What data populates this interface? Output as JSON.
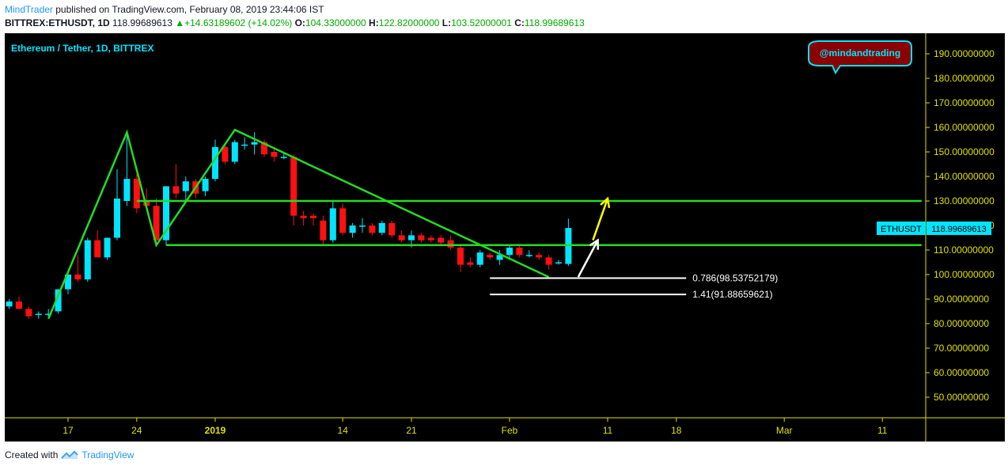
{
  "header": {
    "author": "MindTrader",
    "published_text": " published on TradingView.com, February 08, 2019 23:44:06 IST",
    "symbol": "BITTREX:ETHUSDT, 1D",
    "last": "118.99689613",
    "change": "+14.63189602 (+14.02%)",
    "open_label": "O:",
    "open": "104.33000000",
    "high_label": "H:",
    "high": "122.82000000",
    "low_label": "L:",
    "low": "103.52000001",
    "close_label": "C:",
    "close": "118.99689613"
  },
  "chart": {
    "title": "Ethereum / Tether, 1D, BITTREX",
    "watermark": "@mindandtrading",
    "price_tag_symbol": "ETHUSDT",
    "price_tag_value": "118.99689613",
    "fib_labels": [
      "0.786(98.53752179)",
      "1.41(91.88659621)"
    ]
  },
  "footer": {
    "created_with": "Created with",
    "brand": "TradingView"
  },
  "colors": {
    "background": "#000000",
    "up_candle": "#00e5ff",
    "down_candle": "#ff1010",
    "trend_line": "#22dd22",
    "axis": "#e0e000",
    "arrow_white": "#ffffff",
    "arrow_yellow": "#ffff00"
  },
  "chart_data": {
    "type": "candlestick",
    "y_axis": {
      "range": [
        45,
        197
      ],
      "ticks": [
        "190.00000000",
        "180.00000000",
        "170.00000000",
        "160.00000000",
        "150.00000000",
        "140.00000000",
        "130.00000000",
        "120.00000000",
        "110.00000000",
        "100.00000000",
        "90.00000000",
        "80.00000000",
        "70.00000000",
        "60.00000000",
        "50.00000000"
      ]
    },
    "x_axis": {
      "ticks": [
        {
          "label": "17",
          "day": 17
        },
        {
          "label": "24",
          "day": 24
        },
        {
          "label": "2019",
          "day": 32
        },
        {
          "label": "14",
          "day": 45
        },
        {
          "label": "21",
          "day": 52
        },
        {
          "label": "Feb",
          "day": 62
        },
        {
          "label": "11",
          "day": 72
        },
        {
          "label": "18",
          "day": 79
        },
        {
          "label": "Mar",
          "day": 90
        },
        {
          "label": "11",
          "day": 100
        }
      ]
    },
    "candles": [
      {
        "day": 10,
        "o": 89,
        "h": 91,
        "l": 86,
        "c": 87
      },
      {
        "day": 11,
        "o": 87,
        "h": 90,
        "l": 86,
        "c": 89
      },
      {
        "day": 12,
        "o": 89,
        "h": 91,
        "l": 86,
        "c": 86
      },
      {
        "day": 13,
        "o": 86,
        "h": 87,
        "l": 82,
        "c": 83
      },
      {
        "day": 14,
        "o": 84,
        "h": 85,
        "l": 82,
        "c": 84
      },
      {
        "day": 15,
        "o": 84,
        "h": 86,
        "l": 83,
        "c": 84
      },
      {
        "day": 16,
        "o": 85,
        "h": 94,
        "l": 84,
        "c": 94
      },
      {
        "day": 17,
        "o": 94,
        "h": 101,
        "l": 92,
        "c": 100
      },
      {
        "day": 18,
        "o": 100,
        "h": 108,
        "l": 97,
        "c": 98
      },
      {
        "day": 19,
        "o": 98,
        "h": 115,
        "l": 97,
        "c": 114
      },
      {
        "day": 20,
        "o": 114,
        "h": 118,
        "l": 107,
        "c": 107
      },
      {
        "day": 21,
        "o": 107,
        "h": 115,
        "l": 106,
        "c": 115
      },
      {
        "day": 22,
        "o": 115,
        "h": 143,
        "l": 114,
        "c": 131
      },
      {
        "day": 23,
        "o": 130,
        "h": 158,
        "l": 128,
        "c": 139
      },
      {
        "day": 24,
        "o": 139,
        "h": 141,
        "l": 125,
        "c": 127
      },
      {
        "day": 25,
        "o": 130,
        "h": 135,
        "l": 126,
        "c": 128
      },
      {
        "day": 26,
        "o": 128,
        "h": 131,
        "l": 112,
        "c": 114
      },
      {
        "day": 27,
        "o": 114,
        "h": 136,
        "l": 112,
        "c": 136
      },
      {
        "day": 28,
        "o": 136,
        "h": 145,
        "l": 131,
        "c": 133
      },
      {
        "day": 29,
        "o": 134,
        "h": 140,
        "l": 130,
        "c": 138
      },
      {
        "day": 30,
        "o": 138,
        "h": 139,
        "l": 131,
        "c": 133
      },
      {
        "day": 31,
        "o": 134,
        "h": 140,
        "l": 132,
        "c": 139
      },
      {
        "day": 32,
        "o": 139,
        "h": 155,
        "l": 138,
        "c": 152
      },
      {
        "day": 33,
        "o": 152,
        "h": 153,
        "l": 145,
        "c": 146
      },
      {
        "day": 34,
        "o": 146,
        "h": 155,
        "l": 145,
        "c": 154
      },
      {
        "day": 35,
        "o": 153,
        "h": 156,
        "l": 151,
        "c": 153
      },
      {
        "day": 36,
        "o": 153,
        "h": 158,
        "l": 149,
        "c": 154
      },
      {
        "day": 37,
        "o": 154,
        "h": 155,
        "l": 148,
        "c": 149
      },
      {
        "day": 38,
        "o": 150,
        "h": 152,
        "l": 146,
        "c": 148
      },
      {
        "day": 39,
        "o": 148,
        "h": 150,
        "l": 147,
        "c": 148
      },
      {
        "day": 40,
        "o": 148,
        "h": 149,
        "l": 120,
        "c": 124
      },
      {
        "day": 41,
        "o": 124,
        "h": 126,
        "l": 120,
        "c": 123
      },
      {
        "day": 42,
        "o": 124,
        "h": 125,
        "l": 120,
        "c": 123
      },
      {
        "day": 43,
        "o": 122,
        "h": 124,
        "l": 112,
        "c": 114
      },
      {
        "day": 44,
        "o": 114,
        "h": 130,
        "l": 113,
        "c": 127
      },
      {
        "day": 45,
        "o": 127,
        "h": 129,
        "l": 116,
        "c": 117
      },
      {
        "day": 46,
        "o": 117,
        "h": 121,
        "l": 115,
        "c": 120
      },
      {
        "day": 47,
        "o": 120,
        "h": 123,
        "l": 117,
        "c": 120
      },
      {
        "day": 48,
        "o": 120,
        "h": 121,
        "l": 116,
        "c": 117
      },
      {
        "day": 49,
        "o": 117,
        "h": 122,
        "l": 116,
        "c": 121
      },
      {
        "day": 50,
        "o": 121,
        "h": 122,
        "l": 115,
        "c": 116
      },
      {
        "day": 51,
        "o": 116,
        "h": 118,
        "l": 113,
        "c": 114
      },
      {
        "day": 52,
        "o": 114,
        "h": 118,
        "l": 111,
        "c": 116
      },
      {
        "day": 53,
        "o": 116,
        "h": 117,
        "l": 113,
        "c": 114
      },
      {
        "day": 54,
        "o": 115,
        "h": 116,
        "l": 113,
        "c": 114
      },
      {
        "day": 55,
        "o": 115,
        "h": 116,
        "l": 112,
        "c": 113
      },
      {
        "day": 56,
        "o": 114,
        "h": 116,
        "l": 110,
        "c": 111
      },
      {
        "day": 57,
        "o": 111,
        "h": 112,
        "l": 101,
        "c": 104
      },
      {
        "day": 58,
        "o": 105,
        "h": 107,
        "l": 103,
        "c": 104
      },
      {
        "day": 59,
        "o": 104,
        "h": 110,
        "l": 103,
        "c": 109
      },
      {
        "day": 60,
        "o": 108,
        "h": 109,
        "l": 106,
        "c": 107
      },
      {
        "day": 61,
        "o": 106,
        "h": 110,
        "l": 104,
        "c": 108
      },
      {
        "day": 62,
        "o": 108,
        "h": 112,
        "l": 106,
        "c": 111
      },
      {
        "day": 63,
        "o": 111,
        "h": 112,
        "l": 107,
        "c": 108
      },
      {
        "day": 64,
        "o": 108,
        "h": 110,
        "l": 107,
        "c": 108
      },
      {
        "day": 65,
        "o": 108,
        "h": 109,
        "l": 106,
        "c": 107
      },
      {
        "day": 66,
        "o": 107,
        "h": 108,
        "l": 102,
        "c": 104
      },
      {
        "day": 67,
        "o": 105,
        "h": 106,
        "l": 104,
        "c": 105
      },
      {
        "day": 68,
        "o": 104.33,
        "h": 122.82,
        "l": 103.52,
        "c": 118.99689613
      }
    ],
    "lines": [
      {
        "points": [
          [
            15,
            82
          ],
          [
            23,
            158
          ],
          [
            26,
            112
          ],
          [
            34,
            159
          ],
          [
            66,
            99
          ]
        ]
      },
      {
        "points": [
          [
            24,
            130
          ],
          [
            104,
            130
          ]
        ]
      },
      {
        "points": [
          [
            27,
            112
          ],
          [
            104,
            112
          ]
        ]
      }
    ],
    "fib_levels": [
      {
        "label": "0.786(98.53752179)",
        "value": 98.53752179,
        "from_day": 60,
        "to_day": 80
      },
      {
        "label": "1.41(91.88659621)",
        "value": 91.88659621,
        "from_day": 60,
        "to_day": 80
      }
    ],
    "arrows": [
      {
        "color": "white",
        "from": [
          69,
          99
        ],
        "to": [
          71,
          114
        ]
      },
      {
        "color": "yellow",
        "from": [
          70.5,
          114
        ],
        "to": [
          72,
          131
        ]
      }
    ]
  }
}
